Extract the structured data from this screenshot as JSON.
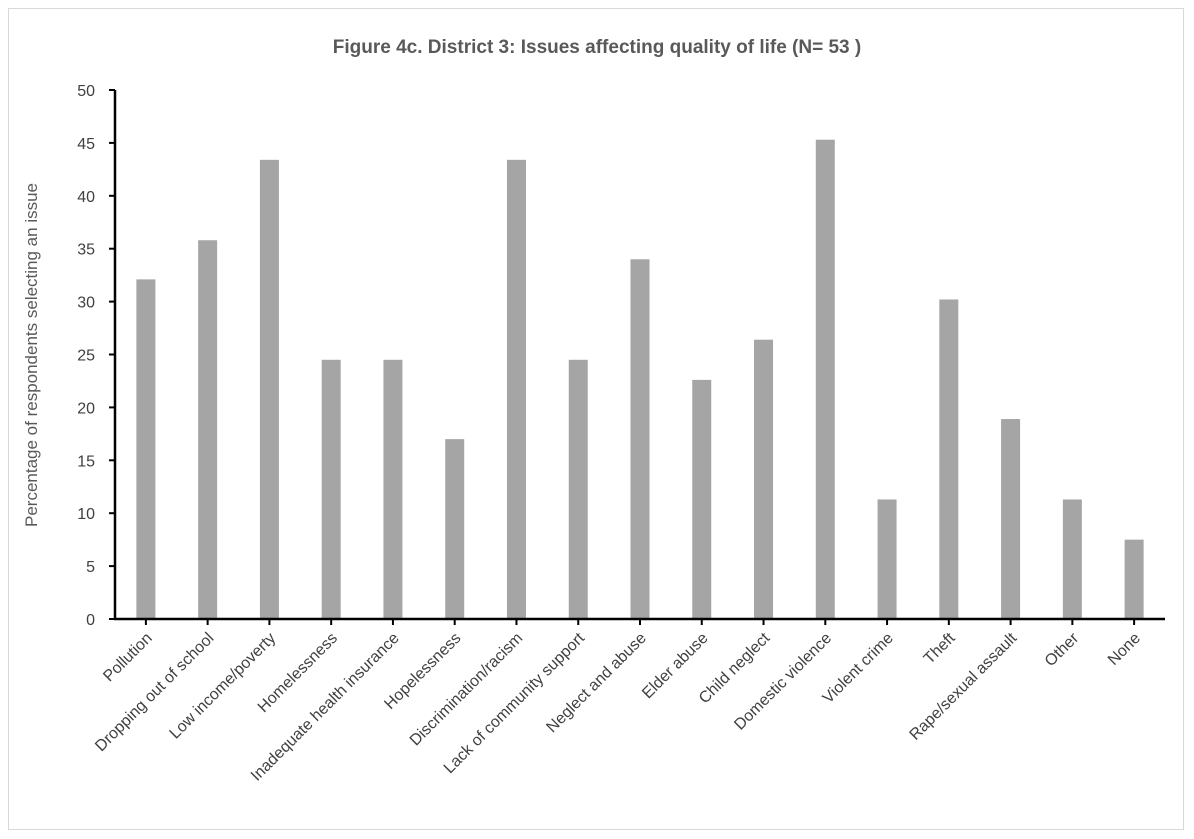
{
  "chart_data": {
    "type": "bar",
    "title": "Figure 4c. District 3: Issues affecting quality of life (N= 53 )",
    "xlabel": "",
    "ylabel": "Percentage of respondents selecting an issue",
    "ylim": [
      0,
      50
    ],
    "yticks": [
      "0",
      "5",
      "10",
      "15",
      "20",
      "25",
      "30",
      "35",
      "40",
      "45",
      "50"
    ],
    "grid": false,
    "legend": "none",
    "bar_color": "#a5a5a5",
    "categories": [
      "Pollution",
      "Dropping out of school",
      "Low income/poverty",
      "Homelessness",
      "Inadequate health insurance",
      "Hopelessness",
      "Discrimination/racism",
      "Lack of community support",
      "Neglect and abuse",
      "Elder abuse",
      "Child neglect",
      "Domestic violence",
      "Violent crime",
      "Theft",
      "Rape/sexual assault",
      "Other",
      "None"
    ],
    "values": [
      32.1,
      35.8,
      43.4,
      24.5,
      24.5,
      17.0,
      43.4,
      24.5,
      34.0,
      22.6,
      26.4,
      45.3,
      11.3,
      30.2,
      18.9,
      11.3,
      7.5
    ]
  }
}
